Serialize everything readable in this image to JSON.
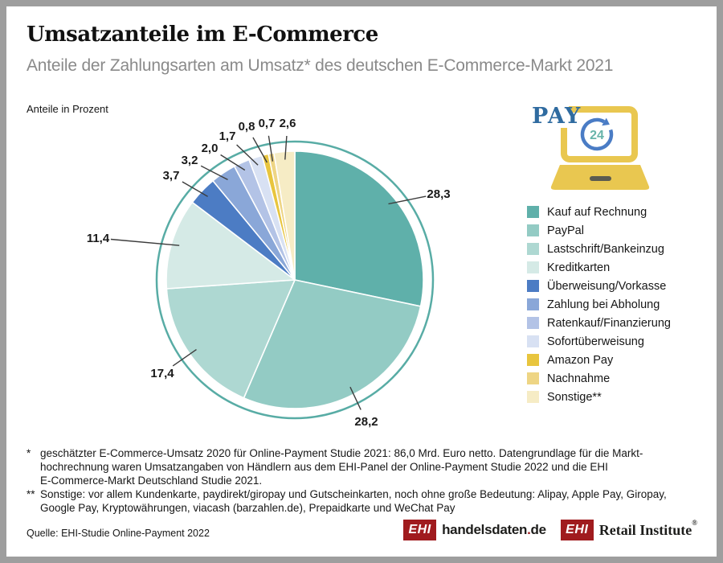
{
  "header": {
    "title": "Umsatzanteile im E-Commerce",
    "subtitle": "Anteile der Zahlungsarten am Umsatz* des deutschen E-Commerce-Markt 2021"
  },
  "chart_note": "Anteile in Prozent",
  "chart_data": {
    "type": "pie",
    "title": "Umsatzanteile im E-Commerce",
    "subtitle": "Anteile der Zahlungsarten am Umsatz* des deutschen E-Commerce-Markt 2021",
    "unit": "percent",
    "start_angle_deg": 0,
    "direction": "clockwise",
    "legend_position": "right",
    "slices": [
      {
        "label": "Kauf auf Rechnung",
        "value": 28.3,
        "display": "28,3",
        "color": "#5fb0aa"
      },
      {
        "label": "PayPal",
        "value": 28.2,
        "display": "28,2",
        "color": "#93cbc4"
      },
      {
        "label": "Lastschrift/Bankeinzug",
        "value": 17.4,
        "display": "17,4",
        "color": "#aed8d2"
      },
      {
        "label": "Kreditkarten",
        "value": 11.4,
        "display": "11,4",
        "color": "#d5eae6"
      },
      {
        "label": "Überweisung/Vorkasse",
        "value": 3.7,
        "display": "3,7",
        "color": "#4c7cc4"
      },
      {
        "label": "Zahlung bei Abholung",
        "value": 3.2,
        "display": "3,2",
        "color": "#8aa7d8"
      },
      {
        "label": "Ratenkauf/Finanzierung",
        "value": 2.0,
        "display": "2,0",
        "color": "#b3c3e6"
      },
      {
        "label": "Sofortüberweisung",
        "value": 1.7,
        "display": "1,7",
        "color": "#d8e1f3"
      },
      {
        "label": "Amazon Pay",
        "value": 0.8,
        "display": "0,8",
        "color": "#e8c53e"
      },
      {
        "label": "Nachnahme",
        "value": 0.7,
        "display": "0,7",
        "color": "#eed584"
      },
      {
        "label": "Sonstige**",
        "value": 2.6,
        "display": "2,6",
        "color": "#f6ecc5"
      }
    ],
    "ring_color": "#58aca5"
  },
  "pay_icon": {
    "label": "PAY",
    "badge": "24"
  },
  "footnotes": [
    {
      "marker": "*",
      "lines": [
        "geschätzter E-Commerce-Umsatz 2020 für Online-Payment Studie 2021: 86,0 Mrd. Euro netto. Datengrundlage für die Markt-",
        "hochrechnung waren Umsatzangaben von Händlern aus dem EHI-Panel der Online-Payment Studie 2022 und die EHI",
        "E-Commerce-Markt Deutschland Studie 2021."
      ]
    },
    {
      "marker": "**",
      "lines": [
        "Sonstige: vor allem Kundenkarte, paydirekt/giropay und Gutscheinkarten, noch ohne große Bedeutung: Alipay, Apple Pay, Giropay,",
        "Google Pay, Kryptowährungen, viacash (barzahlen.de), Prepaidkarte und WeChat Pay"
      ]
    }
  ],
  "source": "Quelle: EHI-Studie Online-Payment 2022",
  "logos": {
    "handelsdaten": {
      "box": "EHI",
      "name": "handelsdaten",
      "dot": ".",
      "tld": "de"
    },
    "retail": {
      "box": "EHI",
      "name": "Retail Institute",
      "registered": "®"
    }
  }
}
